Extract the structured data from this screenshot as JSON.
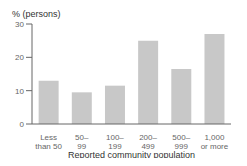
{
  "chart_data": {
    "type": "bar",
    "title": "% (persons)",
    "xlabel": "Reported community population",
    "categories": [
      "Less\nthan 50",
      "50–\n99",
      "100–\n199",
      "200–\n499",
      "500–\n999",
      "1,000\nor more"
    ],
    "values": [
      13.0,
      9.5,
      11.5,
      25.0,
      16.5,
      27.0
    ],
    "color": "#c8c8c8",
    "ylim": [
      0,
      30
    ],
    "yticks": [
      0,
      10,
      20,
      30
    ]
  }
}
